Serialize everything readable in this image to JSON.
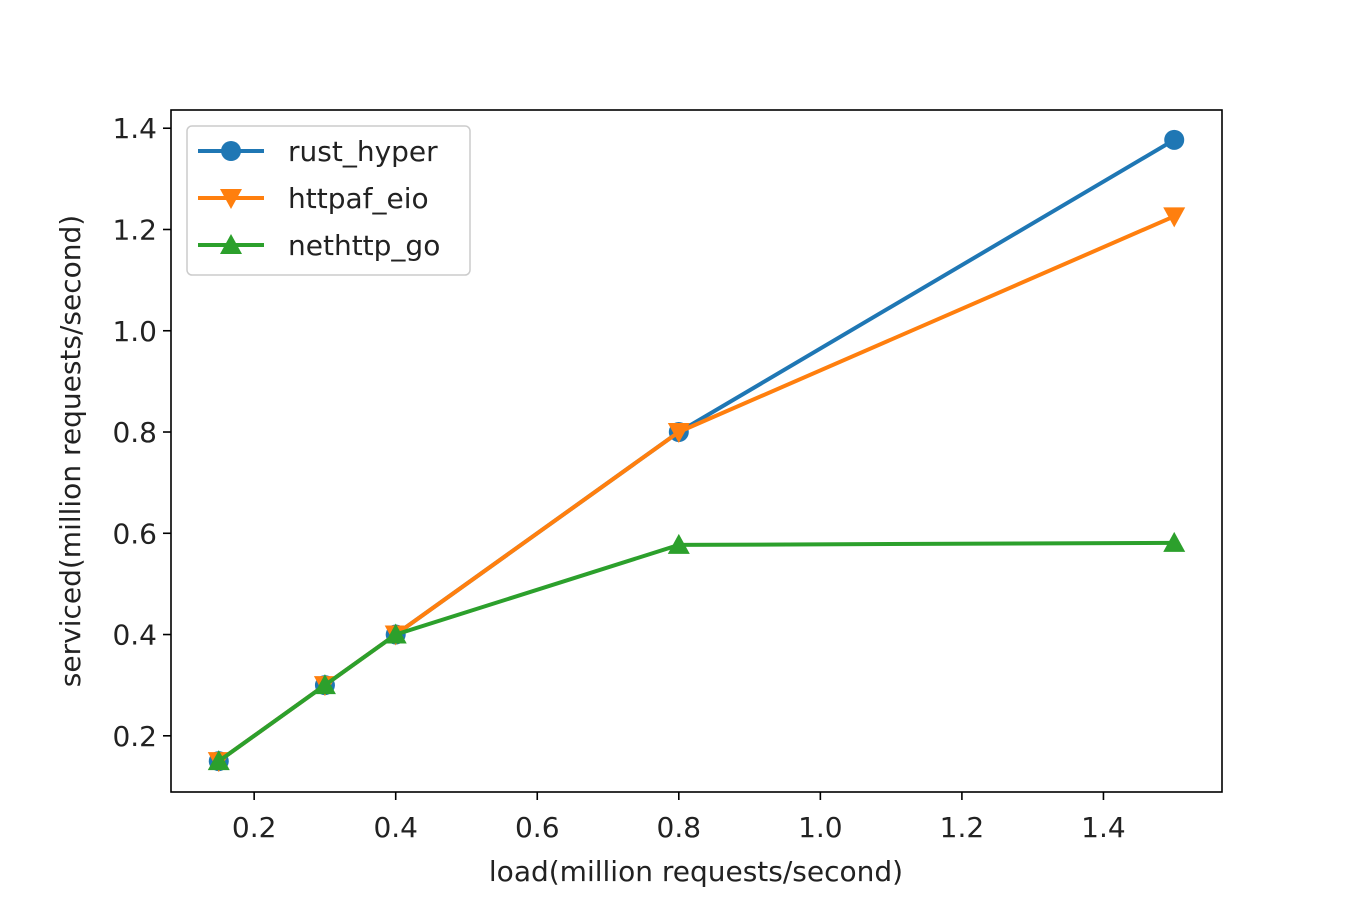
{
  "chart_data": {
    "type": "line",
    "title": "",
    "xlabel": "load(million requests/second)",
    "ylabel": "serviced(million requests/second)",
    "xlim": [
      0.0825,
      1.5675
    ],
    "ylim": [
      0.089,
      1.436
    ],
    "xticks": [
      0.2,
      0.4,
      0.6,
      0.8,
      1.0,
      1.2,
      1.4
    ],
    "xtick_labels": [
      "0.2",
      "0.4",
      "0.6",
      "0.8",
      "1.0",
      "1.2",
      "1.4"
    ],
    "yticks": [
      0.2,
      0.4,
      0.6,
      0.8,
      1.0,
      1.2,
      1.4
    ],
    "ytick_labels": [
      "0.2",
      "0.4",
      "0.6",
      "0.8",
      "1.0",
      "1.2",
      "1.4"
    ],
    "grid": false,
    "legend_position": "top-left",
    "x": [
      0.15,
      0.3,
      0.4,
      0.8,
      1.5
    ],
    "series": [
      {
        "name": "rust_hyper",
        "color": "#1f77b4",
        "marker": "circle",
        "values": [
          0.15,
          0.3,
          0.4,
          0.8,
          1.377
        ]
      },
      {
        "name": "httpaf_eio",
        "color": "#ff7f0e",
        "marker": "triangle-down",
        "values": [
          0.15,
          0.3,
          0.4,
          0.8,
          1.226
        ]
      },
      {
        "name": "nethttp_go",
        "color": "#2ca02c",
        "marker": "triangle-up",
        "values": [
          0.15,
          0.3,
          0.4,
          0.577,
          0.581
        ]
      }
    ]
  }
}
